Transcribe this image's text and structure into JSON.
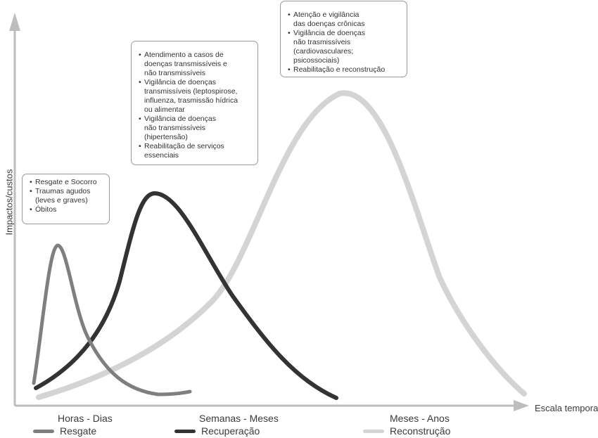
{
  "axes": {
    "y_label": "Impactos/custos",
    "x_label": "Escala temporal",
    "x_ticks": [
      "Horas - Dias",
      "Semanas - Meses",
      "Meses - Anos"
    ]
  },
  "series": [
    {
      "key": "resgate",
      "name": "Resgate",
      "color": "#7f7f7f"
    },
    {
      "key": "recuperacao",
      "name": "Recuperação",
      "color": "#333333"
    },
    {
      "key": "reconstrucao",
      "name": "Reconstrução",
      "color": "#d4d4d4"
    }
  ],
  "boxes": {
    "resgate": [
      "Resgate e Socorro",
      "Traumas agudos\n(leves e graves)",
      "Óbitos"
    ],
    "recuperacao": [
      "Atendimento a casos de\ndoenças transmissíveis e\nnão transmissíveis",
      "Vigilância de doenças\ntransmissíveis (leptospirose,\ninfluenza, trasmissão hídrica\nou alimentar",
      "Vigilância de doenças\nnão transmissíveis (hipertensão)",
      "Reabilitação de serviços\nessenciais"
    ],
    "reconstrucao": [
      "Atenção e vigilância\ndas doenças crônicas",
      "Vigilância de doenças\nnão trasmissíveis\n(cardiovasculares; psicossociais)",
      "Reabilitação e reconstrução"
    ]
  }
}
